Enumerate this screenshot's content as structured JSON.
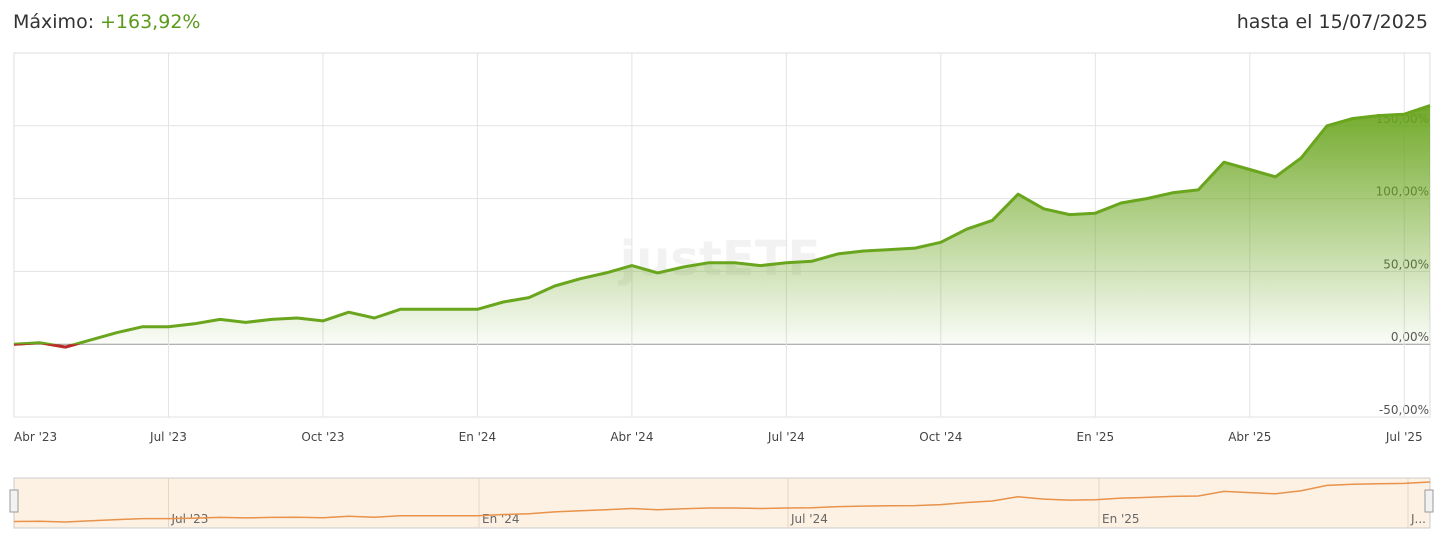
{
  "chart_data": {
    "type": "area",
    "header_label": "Máximo:",
    "header_value": "+163,92%",
    "date_note": "hasta el 15/07/2025",
    "watermark": "justETF",
    "categories": [
      "Abr '23",
      null,
      null,
      null,
      null,
      null,
      "Jul '23",
      null,
      null,
      null,
      null,
      null,
      "Oct '23",
      null,
      null,
      null,
      null,
      null,
      "En '24",
      null,
      null,
      null,
      null,
      null,
      "Abr '24",
      null,
      null,
      null,
      null,
      null,
      "Jul '24",
      null,
      null,
      null,
      null,
      null,
      "Oct '24",
      null,
      null,
      null,
      null,
      null,
      "En '25",
      null,
      null,
      null,
      null,
      null,
      "Abr '25",
      null,
      null,
      null,
      null,
      null,
      "Jul '25",
      null
    ],
    "series": [
      {
        "color": "#6aa51e",
        "negative_color": "#c0272d",
        "values": [
          0,
          1,
          -2,
          3,
          8,
          12,
          12,
          14,
          17,
          15,
          17,
          18,
          16,
          22,
          18,
          24,
          24,
          24,
          24,
          29,
          32,
          40,
          45,
          49,
          54,
          49,
          53,
          56,
          56,
          54,
          56,
          57,
          62,
          64,
          65,
          66,
          70,
          79,
          85,
          103,
          93,
          89,
          90,
          97,
          100,
          104,
          106,
          125,
          120,
          115,
          128,
          150,
          155,
          157,
          158,
          163.92
        ]
      }
    ],
    "ylim": [
      -50,
      200
    ],
    "yticks": [
      {
        "value": -50,
        "label": "-50,00%"
      },
      {
        "value": 0,
        "label": "0,00%"
      },
      {
        "value": 50,
        "label": "50,00%"
      },
      {
        "value": 100,
        "label": "100,00%"
      },
      {
        "value": 150,
        "label": "150,00%"
      }
    ],
    "grid": true,
    "navigator": {
      "color": "#e8924a",
      "background": "#fdf1e4",
      "labels": [
        "Jul '23",
        "En '24",
        "Jul '24",
        "En '25",
        "J..."
      ]
    }
  }
}
